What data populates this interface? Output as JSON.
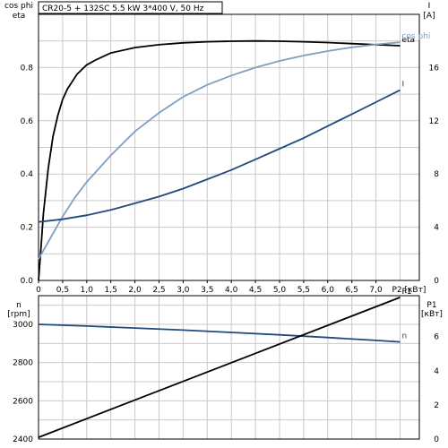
{
  "chart_data": [
    {
      "type": "line",
      "title": "CR20-5 + 132SC   5.5 kW   3*400 V, 50 Hz",
      "y_left_label": [
        "cos phi",
        "eta"
      ],
      "y_right_label": [
        "I",
        "[A]"
      ],
      "x_tick_labels": [
        "0",
        "0,5",
        "1,0",
        "1,5",
        "2,0",
        "2,5",
        "3,0",
        "3,5",
        "4,0",
        "4,5",
        "5,0",
        "5,5",
        "6,0",
        "6,5",
        "7,0"
      ],
      "x_unit_label": "P2 [кВт]",
      "xlim": [
        0,
        7.9
      ],
      "ylim_left": [
        0,
        1.0
      ],
      "ylim_right": [
        0,
        20
      ],
      "y_left_ticks": [
        "0.0",
        "0.2",
        "0.4",
        "0.6",
        "0.8"
      ],
      "y_right_ticks": [
        "0",
        "4",
        "8",
        "12",
        "16"
      ],
      "grid": true,
      "series": [
        {
          "name": "eta",
          "axis": "left",
          "color": "#000000",
          "x": [
            0.0,
            0.05,
            0.1,
            0.2,
            0.3,
            0.4,
            0.5,
            0.6,
            0.8,
            1.0,
            1.2,
            1.5,
            2.0,
            2.5,
            3.0,
            3.5,
            4.0,
            4.5,
            5.0,
            5.5,
            6.0,
            6.5,
            7.0,
            7.5
          ],
          "y": [
            0.0,
            0.12,
            0.25,
            0.42,
            0.54,
            0.62,
            0.68,
            0.72,
            0.775,
            0.81,
            0.83,
            0.855,
            0.875,
            0.886,
            0.893,
            0.897,
            0.899,
            0.9,
            0.899,
            0.897,
            0.894,
            0.89,
            0.886,
            0.882
          ]
        },
        {
          "name": "cos phi",
          "axis": "left",
          "color": "#7f9fbf",
          "x": [
            0.0,
            0.25,
            0.5,
            0.75,
            1.0,
            1.5,
            2.0,
            2.5,
            3.0,
            3.5,
            4.0,
            4.5,
            5.0,
            5.5,
            6.0,
            6.5,
            7.0,
            7.5
          ],
          "y": [
            0.08,
            0.16,
            0.24,
            0.31,
            0.37,
            0.47,
            0.56,
            0.63,
            0.69,
            0.735,
            0.77,
            0.8,
            0.825,
            0.845,
            0.862,
            0.876,
            0.887,
            0.895
          ]
        },
        {
          "name": "I",
          "axis": "right",
          "color": "#204a7a",
          "x": [
            0.0,
            0.5,
            1.0,
            1.5,
            2.0,
            2.5,
            3.0,
            3.5,
            4.0,
            4.5,
            5.0,
            5.5,
            6.0,
            6.5,
            7.0,
            7.5
          ],
          "y": [
            4.4,
            4.6,
            4.9,
            5.3,
            5.8,
            6.3,
            6.9,
            7.6,
            8.3,
            9.1,
            9.9,
            10.7,
            11.6,
            12.5,
            13.4,
            14.3
          ]
        }
      ]
    },
    {
      "type": "line",
      "y_left_label": [
        "n",
        "[rpm]"
      ],
      "y_right_label": [
        "P1",
        "[кВт]"
      ],
      "xlim": [
        0,
        7.9
      ],
      "ylim_left": [
        2400,
        3150
      ],
      "ylim_right": [
        0,
        8.4
      ],
      "y_left_ticks": [
        "2400",
        "2600",
        "2800",
        "3000"
      ],
      "y_right_ticks": [
        "0",
        "2",
        "4",
        "6"
      ],
      "grid": true,
      "series": [
        {
          "name": "n",
          "axis": "left",
          "color": "#204a7a",
          "x": [
            0.0,
            1.0,
            2.0,
            3.0,
            4.0,
            5.0,
            6.0,
            7.0,
            7.5
          ],
          "y": [
            3000,
            2991,
            2981,
            2970,
            2958,
            2945,
            2931,
            2916,
            2908
          ]
        },
        {
          "name": "P1",
          "axis": "right",
          "color": "#000000",
          "x": [
            0.0,
            7.5
          ],
          "y": [
            0.1,
            8.3
          ]
        }
      ]
    }
  ]
}
